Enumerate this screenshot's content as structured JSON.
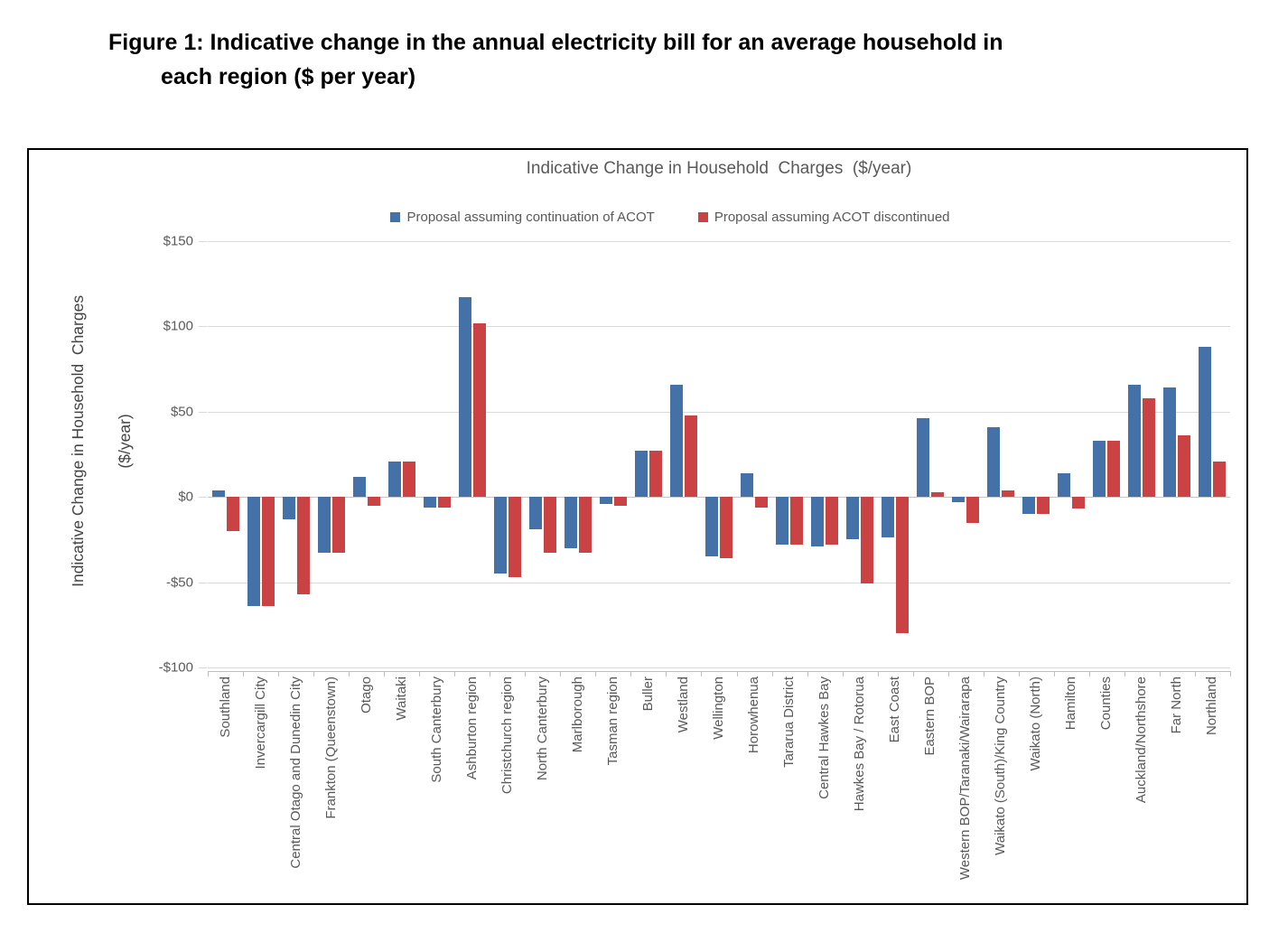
{
  "figure_title": {
    "line1": "Figure 1: Indicative change in the annual electricity bill for an average household in",
    "line2": "each region ($ per year)"
  },
  "chart_data": {
    "type": "bar",
    "title": "Indicative Change in Household  Charges  ($/year)",
    "y_axis_title_line1": "Indicative Change in Household  Charges",
    "y_axis_title_line2": "($/year)",
    "xlabel": "",
    "ylabel": "Indicative Change in Household Charges ($/year)",
    "ylim": [
      -100,
      150
    ],
    "y_tick_labels": [
      "$150",
      "$100",
      "$50",
      "$0",
      "-$50",
      "-$100"
    ],
    "y_tick_values": [
      150,
      100,
      50,
      0,
      -50,
      -100
    ],
    "grid": "horizontal",
    "legend_position": "top",
    "categories": [
      "Southland",
      "Invercargill City",
      "Central Otago and Dunedin City",
      "Frankton (Queenstown)",
      "Otago",
      "Waitaki",
      "South Canterbury",
      "Ashburton region",
      "Christchurch region",
      "North Canterbury",
      "Marlborough",
      "Tasman region",
      "Buller",
      "Westland",
      "Wellington",
      "Horowhenua",
      "Tararua District",
      "Central Hawkes Bay",
      "Hawkes Bay / Rotorua",
      "East Coast",
      "Eastern BOP",
      "Western BOP/Taranaki/Wairarapa",
      "Waikato (South)/King Country",
      "Waikato (North)",
      "Hamilton",
      "Counties",
      "Auckland/Northshore",
      "Far North",
      "Northland"
    ],
    "series": [
      {
        "name": "Proposal assuming continuation of ACOT",
        "color": "#4472A8",
        "values": [
          4,
          -64,
          -13,
          -33,
          12,
          21,
          -6,
          117,
          -45,
          -19,
          -30,
          -4,
          27,
          66,
          -35,
          14,
          -28,
          -29,
          -25,
          -24,
          46,
          -3,
          41,
          -10,
          14,
          33,
          66,
          64,
          88
        ]
      },
      {
        "name": "Proposal assuming ACOT discontinued",
        "color": "#CB4245",
        "values": [
          -20,
          -64,
          -57,
          -33,
          -5,
          21,
          -6,
          102,
          -47,
          -33,
          -33,
          -5,
          27,
          48,
          -36,
          -6,
          -28,
          -28,
          -51,
          -80,
          3,
          -15,
          4,
          -10,
          -7,
          33,
          58,
          36,
          21
        ]
      }
    ]
  },
  "colors": {
    "series_blue": "#4472A8",
    "series_red": "#CB4245",
    "gridline": "#D9D9D9",
    "axis_text": "#595959",
    "frame_border": "#000000"
  }
}
